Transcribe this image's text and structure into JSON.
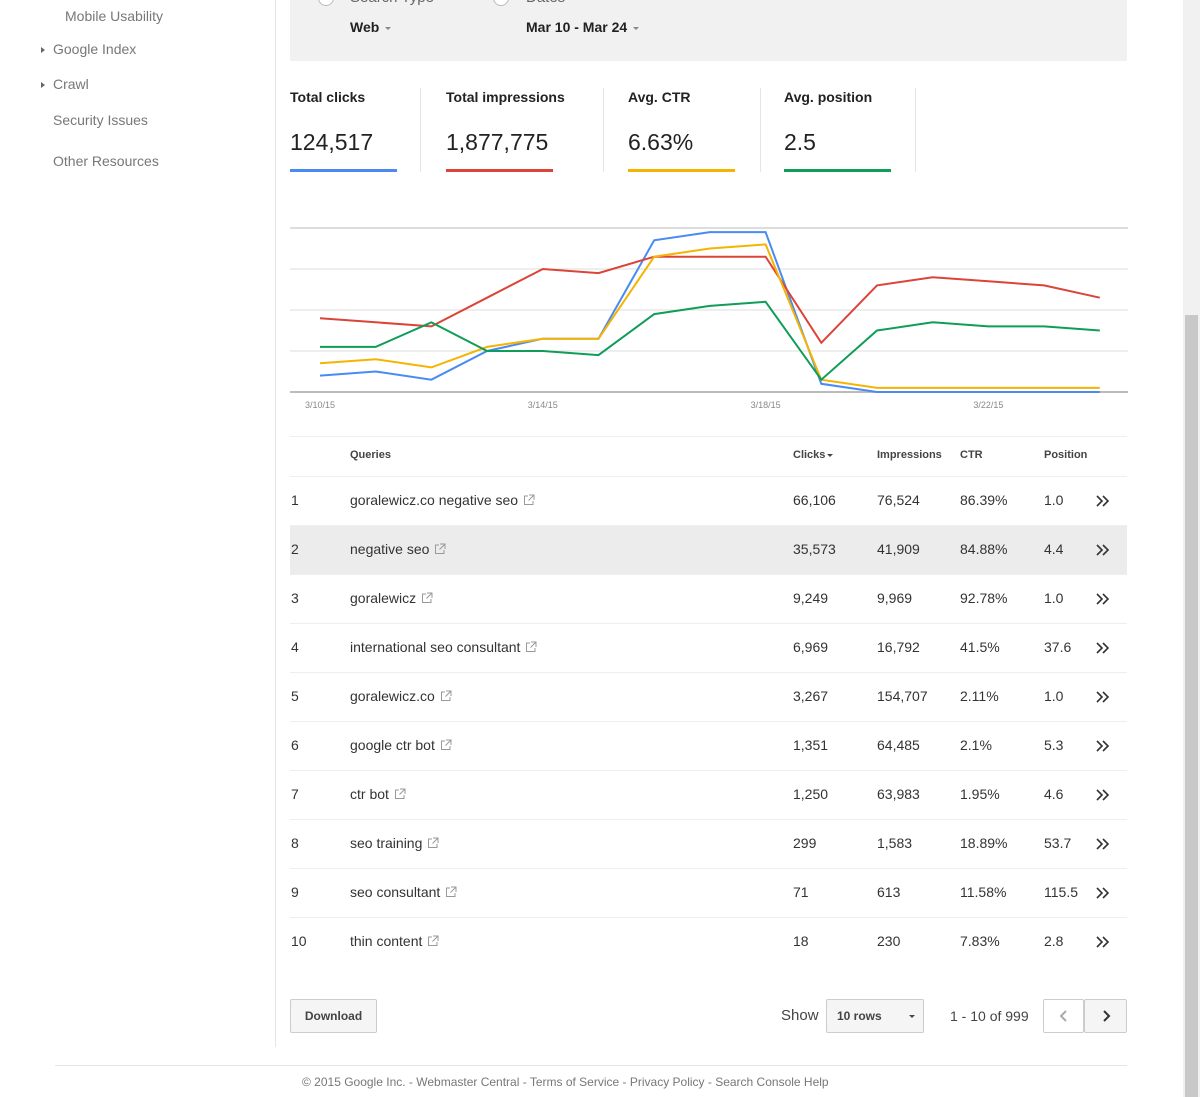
{
  "sidebar": {
    "items": [
      "Mobile Usability",
      "Google Index",
      "Crawl",
      "Security Issues",
      "Other Resources"
    ]
  },
  "filters": [
    {
      "label": "Search Type",
      "value": "Web"
    },
    {
      "label": "Dates",
      "value": "Mar 10 - Mar 24"
    }
  ],
  "metrics": [
    {
      "label": "Total clicks",
      "value": "124,517",
      "color": "#4a8af4"
    },
    {
      "label": "Total impressions",
      "value": "1,877,775",
      "color": "#db4437"
    },
    {
      "label": "Avg. CTR",
      "value": "6.63%",
      "color": "#f4b400"
    },
    {
      "label": "Avg. position",
      "value": "2.5",
      "color": "#0f9d58"
    }
  ],
  "chart_data": {
    "type": "line",
    "categories": [
      "3/10/15",
      null,
      null,
      null,
      "3/14/15",
      null,
      null,
      null,
      "3/18/15",
      null,
      null,
      null,
      "3/22/15",
      null,
      null
    ],
    "series": [
      {
        "name": "Total clicks",
        "color": "#4a8af4",
        "values": [
          0.4,
          0.5,
          0.3,
          1.0,
          1.3,
          1.3,
          3.7,
          3.9,
          3.9,
          0.2,
          0.0,
          0.0,
          0.0,
          0.0,
          0.0
        ]
      },
      {
        "name": "Total impressions",
        "color": "#db4437",
        "values": [
          1.8,
          1.7,
          1.6,
          2.3,
          3.0,
          2.9,
          3.3,
          3.3,
          3.3,
          1.2,
          2.6,
          2.8,
          2.7,
          2.6,
          2.3
        ]
      },
      {
        "name": "Avg. CTR",
        "color": "#f4b400",
        "values": [
          0.7,
          0.8,
          0.6,
          1.1,
          1.3,
          1.3,
          3.3,
          3.5,
          3.6,
          0.3,
          0.1,
          0.1,
          0.1,
          0.1,
          0.1
        ]
      },
      {
        "name": "Avg. position",
        "color": "#0f9d58",
        "values": [
          1.1,
          1.1,
          1.7,
          1.0,
          1.0,
          0.9,
          1.9,
          2.1,
          2.2,
          0.3,
          1.5,
          1.7,
          1.6,
          1.6,
          1.5
        ]
      }
    ],
    "ylim": [
      0,
      4
    ],
    "yticks": [
      0,
      1,
      2,
      3,
      4
    ],
    "grid": true
  },
  "table": {
    "headers": [
      "Queries",
      "Clicks",
      "Impressions",
      "CTR",
      "Position"
    ],
    "rows": [
      [
        "1",
        "goralewicz.co negative seo",
        "66,106",
        "76,524",
        "86.39%",
        "1.0"
      ],
      [
        "2",
        "negative seo",
        "35,573",
        "41,909",
        "84.88%",
        "4.4"
      ],
      [
        "3",
        "goralewicz",
        "9,249",
        "9,969",
        "92.78%",
        "1.0"
      ],
      [
        "4",
        "international seo consultant",
        "6,969",
        "16,792",
        "41.5%",
        "37.6"
      ],
      [
        "5",
        "goralewicz.co",
        "3,267",
        "154,707",
        "2.11%",
        "1.0"
      ],
      [
        "6",
        "google ctr bot",
        "1,351",
        "64,485",
        "2.1%",
        "5.3"
      ],
      [
        "7",
        "ctr bot",
        "1,250",
        "63,983",
        "1.95%",
        "4.6"
      ],
      [
        "8",
        "seo training",
        "299",
        "1,583",
        "18.89%",
        "53.7"
      ],
      [
        "9",
        "seo consultant",
        "71",
        "613",
        "11.58%",
        "115.5"
      ],
      [
        "10",
        "thin content",
        "18",
        "230",
        "7.83%",
        "2.8"
      ]
    ]
  },
  "pager": {
    "download": "Download",
    "show": "Show",
    "rows": "10 rows",
    "range": "1 - 10 of 999"
  },
  "footer": "© 2015 Google Inc. - Webmaster Central - Terms of Service - Privacy Policy - Search Console Help"
}
